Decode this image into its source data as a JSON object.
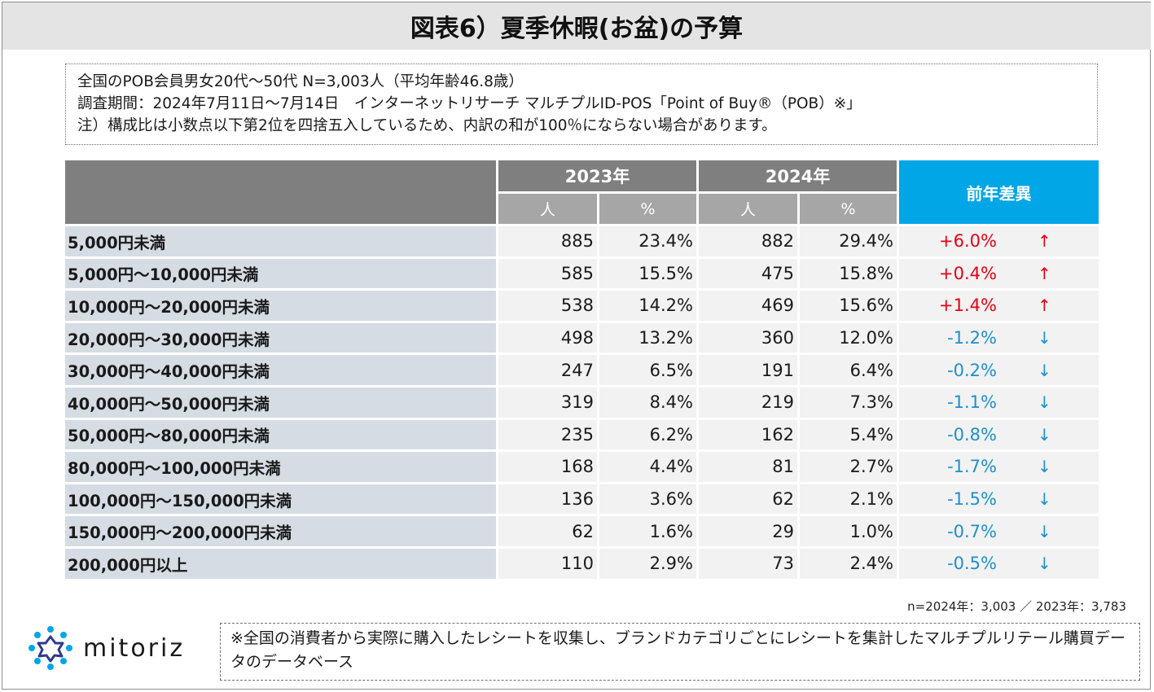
{
  "title": "図表6）夏季休暇(お盆)の予算",
  "notes": [
    "全国のPOB会員男女20代〜50代 N=3,003人（平均年齢46.8歳）",
    "調査期間：2024年7月11日〜7月14日　インターネットリサーチ マルチプルID-POS「Point of Buy®（POB）※」",
    "注）構成比は小数点以下第2位を四捨五入しているため、内訳の和が100％にならない場合があります。"
  ],
  "chart_data": {
    "type": "table",
    "headers": {
      "year_2023": "2023年",
      "year_2024": "2024年",
      "diff": "前年差異",
      "people": "人",
      "percent": "%"
    },
    "rows": [
      {
        "label": "5,000円未満",
        "n2023": "885",
        "p2023": "23.4%",
        "n2024": "882",
        "p2024": "29.4%",
        "diff": "+6.0%",
        "arrow": "↑",
        "dir": "up"
      },
      {
        "label": "5,000円〜10,000円未満",
        "n2023": "585",
        "p2023": "15.5%",
        "n2024": "475",
        "p2024": "15.8%",
        "diff": "+0.4%",
        "arrow": "↑",
        "dir": "up"
      },
      {
        "label": "10,000円〜20,000円未満",
        "n2023": "538",
        "p2023": "14.2%",
        "n2024": "469",
        "p2024": "15.6%",
        "diff": "+1.4%",
        "arrow": "↑",
        "dir": "up"
      },
      {
        "label": "20,000円〜30,000円未満",
        "n2023": "498",
        "p2023": "13.2%",
        "n2024": "360",
        "p2024": "12.0%",
        "diff": "-1.2%",
        "arrow": "↓",
        "dir": "down"
      },
      {
        "label": "30,000円〜40,000円未満",
        "n2023": "247",
        "p2023": "6.5%",
        "n2024": "191",
        "p2024": "6.4%",
        "diff": "-0.2%",
        "arrow": "↓",
        "dir": "down"
      },
      {
        "label": "40,000円〜50,000円未満",
        "n2023": "319",
        "p2023": "8.4%",
        "n2024": "219",
        "p2024": "7.3%",
        "diff": "-1.1%",
        "arrow": "↓",
        "dir": "down"
      },
      {
        "label": "50,000円〜80,000円未満",
        "n2023": "235",
        "p2023": "6.2%",
        "n2024": "162",
        "p2024": "5.4%",
        "diff": "-0.8%",
        "arrow": "↓",
        "dir": "down"
      },
      {
        "label": "80,000円〜100,000円未満",
        "n2023": "168",
        "p2023": "4.4%",
        "n2024": "81",
        "p2024": "2.7%",
        "diff": "-1.7%",
        "arrow": "↓",
        "dir": "down"
      },
      {
        "label": "100,000円〜150,000円未満",
        "n2023": "136",
        "p2023": "3.6%",
        "n2024": "62",
        "p2024": "2.1%",
        "diff": "-1.5%",
        "arrow": "↓",
        "dir": "down"
      },
      {
        "label": "150,000円〜200,000円未満",
        "n2023": "62",
        "p2023": "1.6%",
        "n2024": "29",
        "p2024": "1.0%",
        "diff": "-0.7%",
        "arrow": "↓",
        "dir": "down"
      },
      {
        "label": "200,000円以上",
        "n2023": "110",
        "p2023": "2.9%",
        "n2024": "73",
        "p2024": "2.4%",
        "diff": "-0.5%",
        "arrow": "↓",
        "dir": "down"
      }
    ]
  },
  "colors": {
    "header_dark": "#7f7f7f",
    "header_light": "#a6a6a6",
    "header_diff": "#00a6e6",
    "row_label_bg": "#d6dce4",
    "cell_bg": "#f2f2f2",
    "up": "#e60012",
    "down": "#1f8fcf"
  },
  "sample_note": "n=2024年：3,003 ／ 2023年：3,783",
  "logo": {
    "text": "mitoriz",
    "icon": "mitoriz-logo-icon"
  },
  "source_note": "※全国の消費者から実際に購入したレシートを収集し、ブランドカテゴリごとにレシートを集計したマルチプルリテール購買データのデータベース"
}
